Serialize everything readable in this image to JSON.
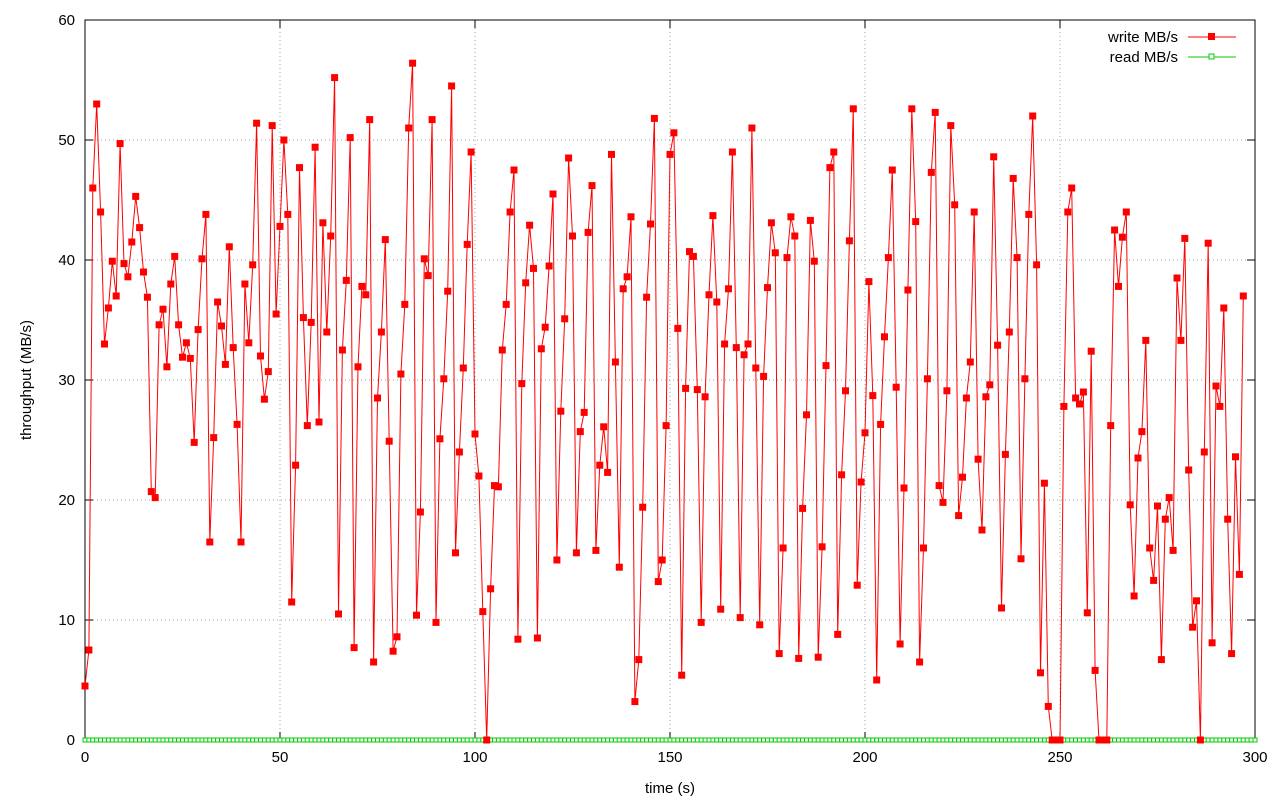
{
  "chart_data": {
    "type": "line",
    "xlabel": "time (s)",
    "ylabel": "throughput (MB/s)",
    "xlim": [
      0,
      300
    ],
    "ylim": [
      0,
      60
    ],
    "x_ticks": [
      0,
      50,
      100,
      150,
      200,
      250,
      300
    ],
    "y_ticks": [
      0,
      10,
      20,
      30,
      40,
      50,
      60
    ],
    "grid": true,
    "legend_position": "top-right",
    "series": [
      {
        "name": "write MB/s",
        "color": "#ff0000",
        "marker": "filled-square",
        "values": [
          4.5,
          7.5,
          46,
          53,
          44,
          33,
          36,
          39.9,
          37,
          49.7,
          39.7,
          38.6,
          41.5,
          45.3,
          42.7,
          39,
          36.9,
          20.7,
          20.2,
          34.6,
          35.9,
          31.1,
          38,
          40.3,
          34.6,
          31.9,
          33.1,
          31.8,
          24.8,
          34.2,
          40.1,
          43.8,
          16.5,
          25.2,
          36.5,
          34.5,
          31.3,
          41.1,
          32.7,
          26.3,
          16.5,
          38,
          33.1,
          39.6,
          51.4,
          32,
          28.4,
          30.7,
          51.2,
          35.5,
          42.8,
          50,
          43.8,
          11.5,
          22.9,
          47.7,
          35.2,
          26.2,
          34.8,
          49.4,
          26.5,
          43.1,
          34,
          42,
          55.2,
          10.5,
          32.5,
          38.3,
          50.2,
          7.7,
          31.1,
          37.8,
          37.1,
          51.7,
          6.5,
          28.5,
          34,
          41.7,
          24.9,
          7.4,
          8.6,
          30.5,
          36.3,
          51,
          56.4,
          10.4,
          19,
          40.1,
          38.7,
          51.7,
          9.8,
          25.1,
          30.1,
          37.4,
          54.5,
          15.6,
          24,
          31,
          41.3,
          49,
          25.5,
          22,
          10.7,
          0,
          12.6,
          21.2,
          21.1,
          32.5,
          36.3,
          44,
          47.5,
          8.4,
          29.7,
          38.1,
          42.9,
          39.3,
          8.5,
          32.6,
          34.4,
          39.5,
          45.5,
          15,
          27.4,
          35.1,
          48.5,
          42,
          15.6,
          25.7,
          27.3,
          42.3,
          46.2,
          15.8,
          22.9,
          26.1,
          22.3,
          48.8,
          31.5,
          14.4,
          37.6,
          38.6,
          43.6,
          3.2,
          6.7,
          19.4,
          36.9,
          43,
          51.8,
          13.2,
          15,
          26.2,
          48.8,
          50.6,
          34.3,
          5.4,
          29.3,
          40.7,
          40.3,
          29.2,
          9.8,
          28.6,
          37.1,
          43.7,
          36.5,
          10.9,
          33,
          37.6,
          49,
          32.7,
          10.2,
          32.1,
          33,
          51,
          31,
          9.6,
          30.3,
          37.7,
          43.1,
          40.6,
          7.2,
          16,
          40.2,
          43.6,
          42,
          6.8,
          19.3,
          27.1,
          43.3,
          39.9,
          6.9,
          16.1,
          31.2,
          47.7,
          49,
          8.8,
          22.1,
          29.1,
          41.6,
          52.6,
          12.9,
          21.5,
          25.6,
          38.2,
          28.7,
          5,
          26.3,
          33.6,
          40.2,
          47.5,
          29.4,
          8,
          21,
          37.5,
          52.6,
          43.2,
          6.5,
          16,
          30.1,
          47.3,
          52.3,
          21.2,
          19.8,
          29.1,
          51.2,
          44.6,
          18.7,
          21.9,
          28.5,
          31.5,
          44,
          23.4,
          17.5,
          28.6,
          29.6,
          48.6,
          32.9,
          11,
          23.8,
          34,
          46.8,
          40.2,
          15.1,
          30.1,
          43.8,
          52,
          39.6,
          5.6,
          21.4,
          2.8,
          0,
          0,
          0,
          27.8,
          44,
          46,
          28.5,
          28,
          29,
          10.6,
          32.4,
          5.8,
          0,
          0,
          0,
          26.2,
          42.5,
          37.8,
          41.9,
          44,
          19.6,
          12,
          23.5,
          25.7,
          33.3,
          16,
          13.3,
          19.5,
          6.7,
          18.4,
          20.2,
          15.8,
          38.5,
          33.3,
          41.8,
          22.5,
          9.4,
          11.6,
          0,
          24,
          41.4,
          8.1,
          29.5,
          27.8,
          36,
          18.4,
          7.2,
          23.6,
          13.8,
          37
        ]
      },
      {
        "name": "read MB/s",
        "color": "#00cc00",
        "marker": "open-square",
        "constant_value": 0
      }
    ]
  }
}
